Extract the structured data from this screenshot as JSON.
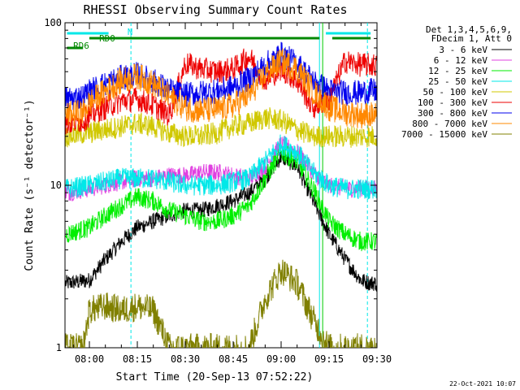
{
  "chart_data": {
    "type": "line",
    "title": "RHESSI Observing Summary Count Rates",
    "xlabel": "Start Time (20-Sep-13 07:52:22)",
    "ylabel": "Count Rate (s⁻¹ detector⁻¹)",
    "y_scale": "log",
    "ylim": [
      1,
      100
    ],
    "xlim": [
      "07:52:22",
      "09:30:00"
    ],
    "x_ticks": [
      "08:00",
      "08:15",
      "08:30",
      "08:45",
      "09:00",
      "09:15",
      "09:30"
    ],
    "y_ticks": [
      "1",
      "10",
      "100"
    ],
    "legend_header": [
      "Det 1,3,4,5,6,9,",
      "FDecim 1, Att 0"
    ],
    "legend_position": "right",
    "footer_date": "22-Oct-2021 10:07",
    "series": [
      {
        "name": "3 - 6 keV",
        "color": "#000000",
        "x": [
          "07:53",
          "08:00",
          "08:05",
          "08:10",
          "08:15",
          "08:20",
          "08:25",
          "08:30",
          "08:35",
          "08:40",
          "08:45",
          "08:50",
          "08:55",
          "09:00",
          "09:05",
          "09:10",
          "09:15",
          "09:20",
          "09:25",
          "09:28"
        ],
        "values": [
          2.5,
          2.6,
          3.5,
          4.5,
          5.5,
          6,
          6.5,
          7,
          7,
          7.5,
          8,
          9,
          11,
          15,
          13,
          8,
          5,
          3.5,
          2.6,
          2.5
        ]
      },
      {
        "name": "6 - 12 keV",
        "color": "#e040e0",
        "x": [
          "07:53",
          "08:00",
          "08:05",
          "08:10",
          "08:15",
          "08:20",
          "08:25",
          "08:30",
          "08:35",
          "08:40",
          "08:45",
          "08:50",
          "08:55",
          "09:00",
          "09:05",
          "09:10",
          "09:15",
          "09:20",
          "09:25",
          "09:28"
        ],
        "values": [
          9,
          9.5,
          10,
          10.5,
          11,
          11,
          11.5,
          11.5,
          12,
          12,
          11.5,
          11,
          13,
          18,
          16,
          12,
          10,
          9.5,
          9.5,
          9.5
        ]
      },
      {
        "name": "12 - 25 keV",
        "color": "#00ee00",
        "x": [
          "07:53",
          "08:00",
          "08:05",
          "08:10",
          "08:15",
          "08:20",
          "08:25",
          "08:30",
          "08:35",
          "08:40",
          "08:45",
          "08:50",
          "08:55",
          "09:00",
          "09:05",
          "09:10",
          "09:15",
          "09:20",
          "09:25",
          "09:28"
        ],
        "values": [
          5,
          5.5,
          6.5,
          7.5,
          8.5,
          8,
          7,
          6.5,
          6,
          6,
          6.5,
          7.5,
          11,
          16,
          14,
          9.5,
          6,
          5,
          4.5,
          4.5
        ]
      },
      {
        "name": "25 - 50 keV",
        "color": "#00e8e8",
        "x": [
          "07:53",
          "08:00",
          "08:05",
          "08:10",
          "08:15",
          "08:20",
          "08:25",
          "08:30",
          "08:35",
          "08:40",
          "08:45",
          "08:50",
          "08:55",
          "09:00",
          "09:05",
          "09:10",
          "09:15",
          "09:20",
          "09:25",
          "09:28"
        ],
        "values": [
          9.5,
          10,
          10.5,
          11,
          11,
          11,
          10.5,
          10,
          10,
          10,
          10.5,
          11,
          14,
          18,
          16,
          12,
          10,
          9.5,
          9.5,
          9.5
        ]
      },
      {
        "name": "50 - 100 keV",
        "color": "#d0c800",
        "x": [
          "07:53",
          "08:00",
          "08:05",
          "08:10",
          "08:15",
          "08:20",
          "08:25",
          "08:30",
          "08:35",
          "08:40",
          "08:45",
          "08:50",
          "08:55",
          "09:00",
          "09:05",
          "09:10",
          "09:15",
          "09:20",
          "09:25",
          "09:28"
        ],
        "values": [
          20,
          21,
          22,
          23,
          24,
          23,
          21,
          20,
          20,
          21,
          23,
          24,
          26,
          25,
          22,
          20,
          20,
          20,
          20,
          20
        ]
      },
      {
        "name": "100 - 300 keV",
        "color": "#ee0000",
        "x": [
          "07:53",
          "07:58",
          "08:00",
          "08:05",
          "08:10",
          "08:15",
          "08:20",
          "08:25",
          "08:30",
          "08:35",
          "08:40",
          "08:45",
          "08:50",
          "08:55",
          "09:00",
          "09:05",
          "09:10",
          "09:15",
          "09:20",
          "09:25",
          "09:28"
        ],
        "values": [
          24,
          25,
          27,
          30,
          33,
          34,
          31,
          27,
          56,
          52,
          50,
          52,
          62,
          44,
          52,
          44,
          30,
          34,
          58,
          55,
          55
        ]
      },
      {
        "name": "300 - 800 keV",
        "color": "#0000ee",
        "x": [
          "07:53",
          "07:58",
          "08:00",
          "08:05",
          "08:10",
          "08:15",
          "08:20",
          "08:25",
          "08:30",
          "08:35",
          "08:40",
          "08:45",
          "08:50",
          "08:55",
          "09:00",
          "09:05",
          "09:10",
          "09:15",
          "09:20",
          "09:25",
          "09:28"
        ],
        "values": [
          34,
          35,
          38,
          42,
          46,
          48,
          44,
          38,
          36,
          37,
          38,
          40,
          45,
          55,
          64,
          56,
          44,
          38,
          37,
          37,
          38
        ]
      },
      {
        "name": "800 - 7000 keV",
        "color": "#ff8800",
        "x": [
          "07:53",
          "07:58",
          "08:00",
          "08:05",
          "08:10",
          "08:15",
          "08:20",
          "08:25",
          "08:30",
          "08:35",
          "08:40",
          "08:45",
          "08:50",
          "08:55",
          "09:00",
          "09:05",
          "09:10",
          "09:15",
          "09:20",
          "09:25",
          "09:28"
        ],
        "values": [
          27,
          28,
          32,
          38,
          44,
          47,
          42,
          35,
          30,
          29,
          29,
          31,
          36,
          48,
          58,
          52,
          38,
          30,
          28,
          27,
          27
        ]
      },
      {
        "name": "7000 - 15000 keV",
        "color": "#808000",
        "x": [
          "07:53",
          "07:58",
          "08:00",
          "08:05",
          "08:10",
          "08:15",
          "08:20",
          "08:25",
          "08:30",
          "08:35",
          "08:40",
          "08:45",
          "08:50",
          "08:55",
          "09:00",
          "09:05",
          "09:10",
          "09:15",
          "09:20",
          "09:25",
          "09:28"
        ],
        "values": [
          1,
          1,
          1.7,
          1.8,
          1.7,
          1.8,
          1.7,
          1,
          1,
          1,
          1,
          1,
          1,
          2,
          3,
          2.5,
          1.5,
          1,
          1,
          1,
          1
        ]
      }
    ],
    "state_bars": [
      {
        "label": "N",
        "color": "#00e8e8",
        "segments": [
          [
            "07:53",
            "08:06"
          ],
          [
            "09:14",
            "09:28"
          ]
        ]
      },
      {
        "label": "RD0",
        "color": "#008800",
        "segments": [
          [
            "08:00",
            "09:12"
          ],
          [
            "09:16",
            "09:28"
          ]
        ]
      },
      {
        "label": "RD6",
        "color": "#008800",
        "segments": [
          [
            "07:53",
            "07:58"
          ]
        ]
      }
    ],
    "vertical_markers": [
      {
        "x": "08:13",
        "color": "#00e8e8",
        "style": "dashed"
      },
      {
        "x": "09:12",
        "color": "#00e8e8",
        "style": "solid"
      },
      {
        "x": "09:13",
        "color": "#00cc00",
        "style": "solid"
      },
      {
        "x": "09:27",
        "color": "#00e8e8",
        "style": "dashed"
      }
    ],
    "grid": false
  }
}
